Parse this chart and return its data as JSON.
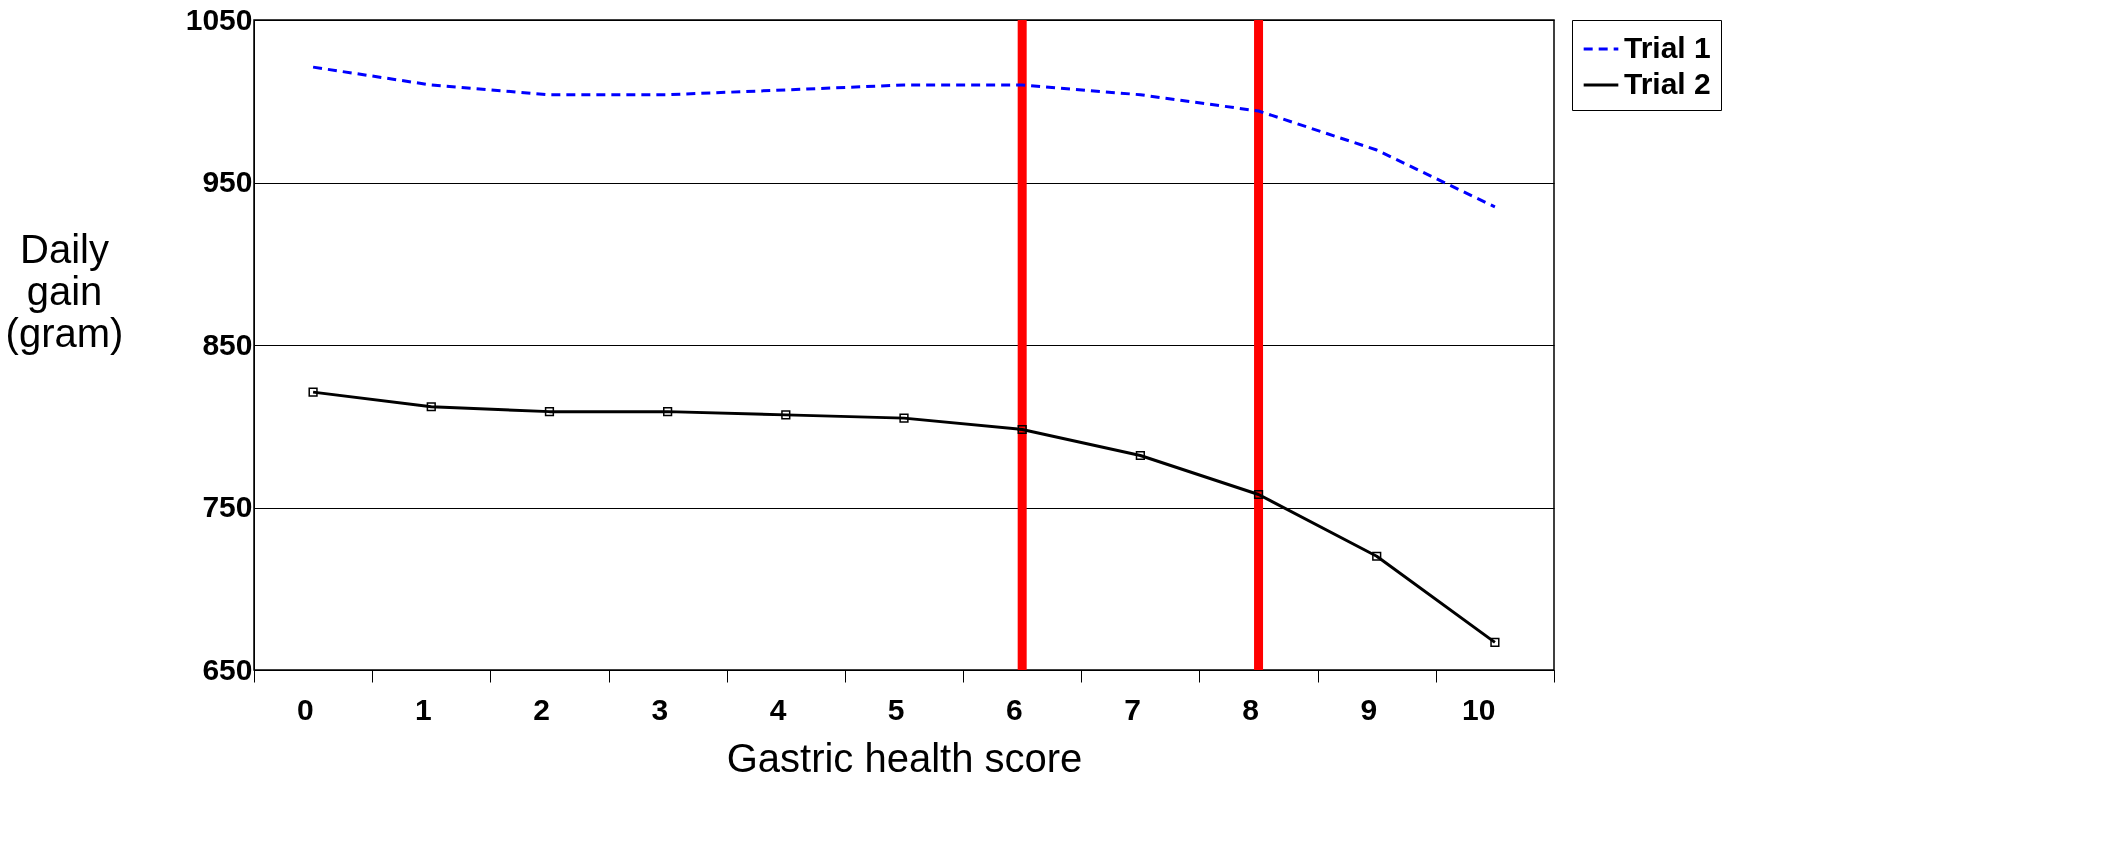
{
  "chart_data": {
    "type": "line",
    "xlabel": "Gastric health score",
    "ylabel": "Daily gain (gram)",
    "categories": [
      "0",
      "1",
      "2",
      "3",
      "4",
      "5",
      "6",
      "7",
      "8",
      "9",
      "10"
    ],
    "series": [
      {
        "name": "Trial 1",
        "color": "#0000ff",
        "line_style": "dashed",
        "marker": "none",
        "values": [
          1021,
          1010,
          1004,
          1004,
          1007,
          1010,
          1010,
          1004,
          994,
          970,
          935
        ]
      },
      {
        "name": "Trial 2",
        "color": "#000000",
        "line_style": "solid",
        "marker": "square",
        "values": [
          821,
          812,
          809,
          809,
          807,
          805,
          798,
          782,
          758,
          720,
          667
        ]
      }
    ],
    "ylim": [
      650,
      1050
    ],
    "yticks": [
      650,
      750,
      850,
      950,
      1050
    ],
    "grid": "y",
    "legend": "right",
    "ref_lines": [
      {
        "axis": "x",
        "value": "6",
        "color": "#ff0000"
      },
      {
        "axis": "x",
        "value": "8",
        "color": "#ff0000"
      }
    ]
  }
}
